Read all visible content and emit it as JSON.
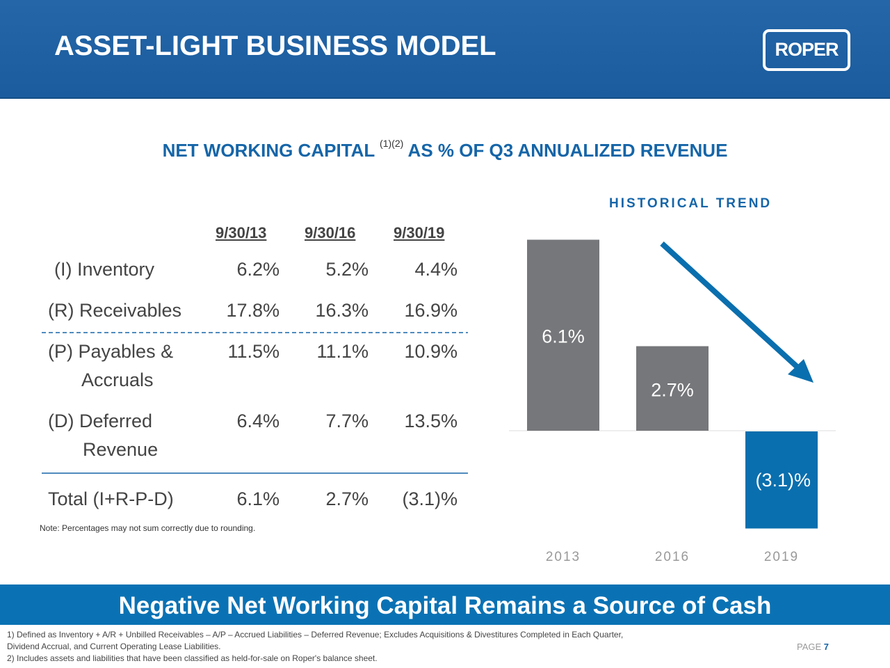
{
  "header": {
    "title": "ASSET-LIGHT BUSINESS MODEL",
    "logo_text": "ROPER"
  },
  "subtitle": {
    "pre": "NET WORKING CAPITAL",
    "sup": "(1)(2)",
    "post": "AS % OF Q3 ANNUALIZED REVENUE"
  },
  "table": {
    "columns": [
      "9/30/13",
      "9/30/16",
      "9/30/19"
    ],
    "rows": [
      {
        "label": [
          "(I)  Inventory"
        ],
        "values": [
          "6.2%",
          "5.2%",
          "4.4%"
        ]
      },
      {
        "label": [
          "(R) Receivables"
        ],
        "values": [
          "17.8%",
          "16.3%",
          "16.9%"
        ]
      },
      {
        "label": [
          "(P) Payables &",
          "Accruals"
        ],
        "values": [
          "11.5%",
          "11.1%",
          "10.9%"
        ]
      },
      {
        "label": [
          "(D) Deferred",
          "Revenue"
        ],
        "values": [
          "6.4%",
          "7.7%",
          "13.5%"
        ]
      },
      {
        "label": [
          "Total (I+R-P-D)"
        ],
        "values": [
          "6.1%",
          "2.7%",
          "(3.1)%"
        ]
      }
    ],
    "note": "Note: Percentages may not sum correctly due to rounding."
  },
  "chart_data": {
    "type": "bar",
    "title": "HISTORICAL TREND",
    "categories": [
      "2013",
      "2016",
      "2019"
    ],
    "values": [
      6.1,
      2.7,
      -3.1
    ],
    "labels": [
      "6.1%",
      "2.7%",
      "(3.1)%"
    ],
    "colors": [
      "#76777a",
      "#76777a",
      "#0a6fae"
    ],
    "trend_arrow": "down",
    "grid": false
  },
  "banner": "Negative Net Working Capital Remains a Source of Cash",
  "footnotes": [
    "1) Defined as Inventory + A/R + Unbilled Receivables – A/P – Accrued Liabilities – Deferred Revenue; Excludes Acquisitions & Divestitures Completed in Each Quarter,",
    "Dividend Accrual, and Current Operating Lease Liabilities.",
    "2) Includes assets and liabilities that have been classified as held-for-sale on Roper's balance sheet."
  ],
  "page": {
    "label": "PAGE",
    "number": "7"
  }
}
